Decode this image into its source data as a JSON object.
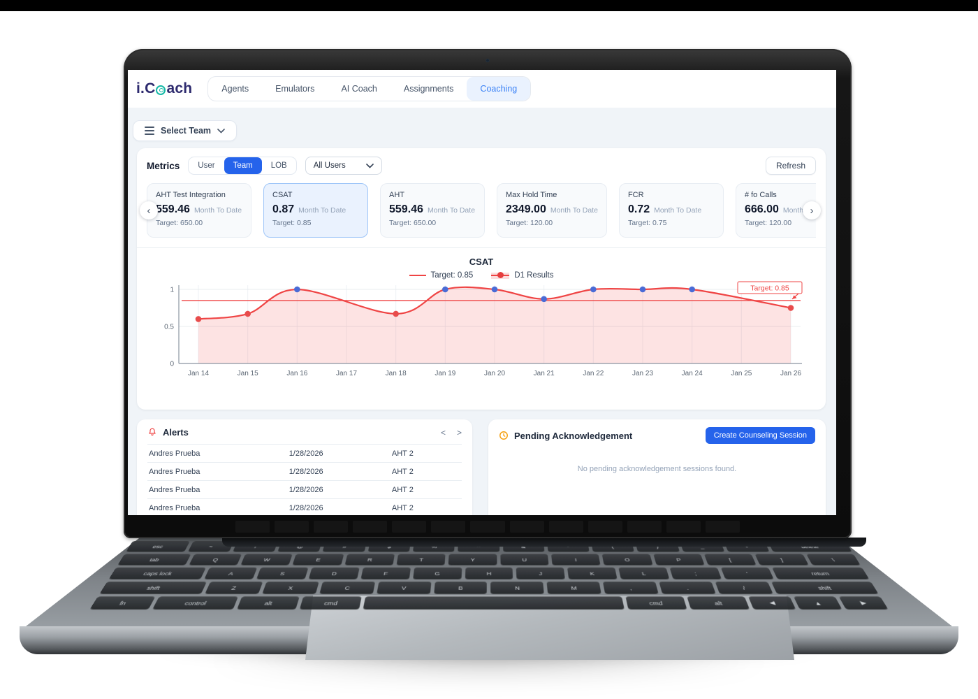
{
  "theme": {
    "accent_blue": "#2563eb",
    "tab_active_bg": "#eaf2fe",
    "tab_active_text": "#3b82f6",
    "alert_red": "#ef4444",
    "pending_orange": "#f59e0b",
    "logo_navy": "#2d2a6e",
    "logo_teal": "#14b8a6"
  },
  "brand": {
    "logo_part1": "i.C",
    "logo_part2": "ach",
    "logo_o_icon": "target-circle-icon"
  },
  "header": {
    "nav": [
      {
        "label": "Agents",
        "active": false
      },
      {
        "label": "Emulators",
        "active": false
      },
      {
        "label": "AI Coach",
        "active": false
      },
      {
        "label": "Assignments",
        "active": false
      },
      {
        "label": "Coaching",
        "active": true
      }
    ]
  },
  "toolbar": {
    "select_team_label": "Select Team"
  },
  "metrics": {
    "title": "Metrics",
    "scope_tabs": [
      {
        "label": "User",
        "active": false
      },
      {
        "label": "Team",
        "active": true
      },
      {
        "label": "LOB",
        "active": false
      }
    ],
    "user_filter_value": "All Users",
    "refresh_label": "Refresh",
    "cards": [
      {
        "title": "AHT Test Integration",
        "value": "559.46",
        "period": "Month To Date",
        "target": "Target: 650.00",
        "selected": false
      },
      {
        "title": "CSAT",
        "value": "0.87",
        "period": "Month To Date",
        "target": "Target: 0.85",
        "selected": true
      },
      {
        "title": "AHT",
        "value": "559.46",
        "period": "Month To Date",
        "target": "Target: 650.00",
        "selected": false
      },
      {
        "title": "Max Hold Time",
        "value": "2349.00",
        "period": "Month To Date",
        "target": "Target: 120.00",
        "selected": false
      },
      {
        "title": "FCR",
        "value": "0.72",
        "period": "Month To Date",
        "target": "Target: 0.75",
        "selected": false
      },
      {
        "title": "# fo Calls",
        "value": "666.00",
        "period": "Month To Date",
        "target": "Target: 120.00",
        "selected": false
      }
    ]
  },
  "chart_data": {
    "type": "area",
    "title": "CSAT",
    "x": [
      "Jan 14",
      "Jan 15",
      "Jan 16",
      "Jan 17",
      "Jan 18",
      "Jan 19",
      "Jan 20",
      "Jan 21",
      "Jan 22",
      "Jan 23",
      "Jan 24",
      "Jan 25",
      "Jan 26"
    ],
    "series": [
      {
        "name": "D1 Results",
        "values": [
          0.6,
          0.67,
          1,
          null,
          0.67,
          1,
          1,
          0.87,
          1,
          1,
          1,
          null,
          0.75
        ]
      }
    ],
    "target": {
      "label": "Target: 0.85",
      "value": 0.85
    },
    "annotation": {
      "label": "Target: 0.85"
    },
    "ylim": [
      0,
      1.05
    ],
    "yticks": [
      0,
      0.5,
      1
    ],
    "grid": true,
    "legend_position": "top",
    "colors": {
      "line": "#ef4444",
      "area_fill": "rgba(239,68,68,0.15)",
      "target_line": "#ef4444",
      "point_above_target": "#4a6bd6",
      "point_below_target": "#e84c4c"
    }
  },
  "alerts": {
    "title": "Alerts",
    "bell_icon": "bell-icon",
    "pager_prev": "<",
    "pager_next": ">",
    "rows": [
      {
        "name": "Andres Prueba",
        "date": "1/28/2026",
        "metric": "AHT 2"
      },
      {
        "name": "Andres Prueba",
        "date": "1/28/2026",
        "metric": "AHT 2"
      },
      {
        "name": "Andres Prueba",
        "date": "1/28/2026",
        "metric": "AHT 2"
      },
      {
        "name": "Andres Prueba",
        "date": "1/28/2026",
        "metric": "AHT 2"
      }
    ]
  },
  "pending": {
    "title": "Pending Acknowledgement",
    "clock_icon": "clock-icon",
    "create_button_label": "Create Counseling Session",
    "empty_message": "No pending acknowledgement sessions found."
  },
  "keyboard": {
    "rows": [
      [
        "esc",
        "~",
        "!",
        "@",
        "#",
        "$",
        "%",
        "^",
        "&",
        "*",
        "(",
        ")",
        "_",
        "+",
        "delete"
      ],
      [
        "tab",
        "Q",
        "W",
        "E",
        "R",
        "T",
        "Y",
        "U",
        "I",
        "O",
        "P",
        "[",
        "]",
        "\\"
      ],
      [
        "caps lock",
        "A",
        "S",
        "D",
        "F",
        "G",
        "H",
        "J",
        "K",
        "L",
        ";",
        "'",
        "return"
      ],
      [
        "shift",
        "Z",
        "X",
        "C",
        "V",
        "B",
        "N",
        "M",
        ",",
        ".",
        "/",
        "shift"
      ],
      [
        "fn",
        "control",
        "alt",
        "cmd",
        "",
        "cmd",
        "alt",
        "◀",
        "▲",
        "▶"
      ]
    ]
  }
}
